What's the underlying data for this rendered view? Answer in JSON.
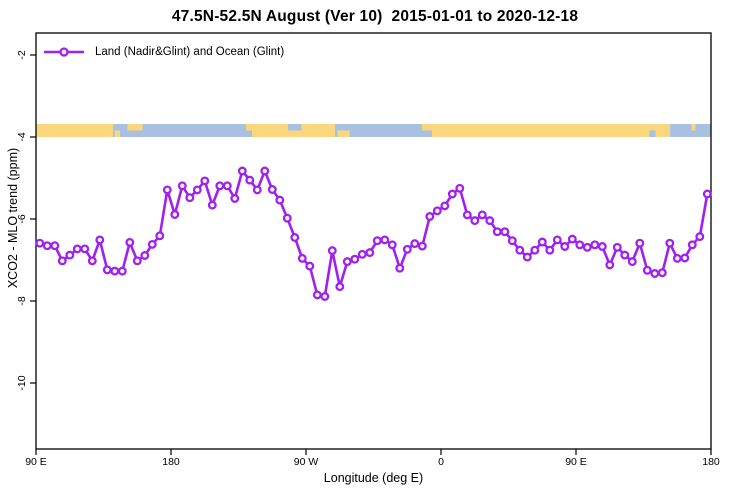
{
  "title": "47.5N-52.5N August (Ver 10)  2015-01-01 to 2020-12-18",
  "legend": {
    "label": "Land (Nadir&Glint) and Ocean (Glint)"
  },
  "axes": {
    "x_label": "Longitude (deg E)",
    "y_label": "XCO2 - MLO trend (ppm)",
    "x_ticks": [
      {
        "lon": 90,
        "label": "90 E"
      },
      {
        "lon": 180,
        "label": "180"
      },
      {
        "lon": 270,
        "label": "90 W"
      },
      {
        "lon": 360,
        "label": "0"
      },
      {
        "lon": 450,
        "label": "90 E"
      },
      {
        "lon": 540,
        "label": "180"
      }
    ],
    "y_ticks": [
      {
        "value": -2,
        "label": "-2"
      },
      {
        "value": -4,
        "label": "-4"
      },
      {
        "value": -6,
        "label": "-6"
      },
      {
        "value": -8,
        "label": "-8"
      },
      {
        "value": -10,
        "label": "-10"
      }
    ]
  },
  "colors": {
    "series": "#A020F0",
    "land": "#FAD67E",
    "ocean": "#A9C0E1",
    "axis": "#000000"
  },
  "surface_band": {
    "description": "land(yellow)/ocean(blue) strip drawn near y=-3.84",
    "center_value": -3.84,
    "segments": [
      {
        "from": 90,
        "to": 141.3,
        "type": "land"
      },
      {
        "from": 141.3,
        "to": 234,
        "type": "ocean"
      },
      {
        "from": 234,
        "to": 289.3,
        "type": "land"
      },
      {
        "from": 289.3,
        "to": 347.3,
        "type": "ocean"
      },
      {
        "from": 347.3,
        "to": 512.7,
        "type": "land"
      },
      {
        "from": 512.7,
        "to": 540,
        "type": "ocean"
      }
    ],
    "details": [
      {
        "from": 142.5,
        "to": 146,
        "type": "land",
        "pos": "bottom"
      },
      {
        "from": 151,
        "to": 161,
        "type": "land",
        "pos": "top"
      },
      {
        "from": 230,
        "to": 234,
        "type": "land",
        "pos": "top"
      },
      {
        "from": 258,
        "to": 267,
        "type": "ocean",
        "pos": "top"
      },
      {
        "from": 291,
        "to": 299,
        "type": "land",
        "pos": "bottom"
      },
      {
        "from": 347,
        "to": 354,
        "type": "ocean",
        "pos": "bottom"
      },
      {
        "from": 499,
        "to": 503,
        "type": "ocean",
        "pos": "bottom"
      },
      {
        "from": 527,
        "to": 529.5,
        "type": "land",
        "pos": "top"
      }
    ]
  },
  "chart_data": {
    "type": "line",
    "title": "47.5N-52.5N August (Ver 10)  2015-01-01 to 2020-12-18",
    "xlabel": "Longitude (deg E)",
    "ylabel": "XCO2 - MLO trend (ppm)",
    "x_axis_note": "longitude wraps eastward: 90E > 180 > 90W > 0 > 90E > 180 (450 deg span)",
    "x_range_deg": [
      90,
      540
    ],
    "ylim": [
      -11.6,
      -1.5
    ],
    "grid": false,
    "legend_position": "top-left",
    "series": [
      {
        "name": "Land (Nadir&Glint) and Ocean (Glint)",
        "color": "#A020F0",
        "marker": "open-circle",
        "x_start_deg": 92.5,
        "x_step_deg": 5,
        "values": [
          -6.59,
          -6.65,
          -6.65,
          -7.02,
          -6.88,
          -6.73,
          -6.73,
          -7.02,
          -6.51,
          -7.24,
          -7.27,
          -7.27,
          -6.57,
          -7.02,
          -6.89,
          -6.62,
          -6.41,
          -5.29,
          -5.89,
          -5.19,
          -5.48,
          -5.29,
          -5.07,
          -5.66,
          -5.19,
          -5.19,
          -5.5,
          -4.83,
          -5.05,
          -5.29,
          -4.83,
          -5.28,
          -5.54,
          -5.98,
          -6.45,
          -6.96,
          -7.15,
          -7.85,
          -7.89,
          -6.77,
          -7.65,
          -7.04,
          -6.98,
          -6.86,
          -6.82,
          -6.53,
          -6.51,
          -6.63,
          -7.2,
          -6.74,
          -6.6,
          -6.66,
          -5.94,
          -5.8,
          -5.68,
          -5.39,
          -5.25,
          -5.9,
          -6.04,
          -5.9,
          -6.04,
          -6.31,
          -6.31,
          -6.53,
          -6.76,
          -6.93,
          -6.76,
          -6.56,
          -6.76,
          -6.51,
          -6.67,
          -6.49,
          -6.63,
          -6.69,
          -6.63,
          -6.67,
          -7.12,
          -6.69,
          -6.88,
          -7.04,
          -6.59,
          -7.25,
          -7.33,
          -7.31,
          -6.59,
          -6.96,
          -6.95,
          -6.63,
          -6.43,
          -5.39
        ]
      }
    ]
  }
}
